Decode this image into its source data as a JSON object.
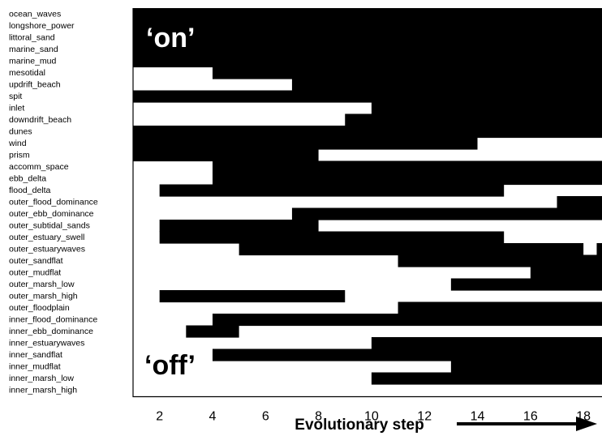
{
  "chart_data": {
    "type": "heatmap",
    "title": "",
    "xlabel": "Evolutionary step",
    "ylabel": "",
    "xlim": [
      1,
      18.7
    ],
    "x_ticks": [
      2,
      4,
      6,
      8,
      10,
      12,
      14,
      16,
      18
    ],
    "on_label": "‘on’",
    "off_label": "‘off’",
    "colors": {
      "on": "#000000",
      "off": "#ffffff"
    },
    "rows": [
      {
        "label": "ocean_waves",
        "on": [
          [
            1,
            18.7
          ]
        ]
      },
      {
        "label": "longshore_power",
        "on": [
          [
            1,
            18.7
          ]
        ]
      },
      {
        "label": "littoral_sand",
        "on": [
          [
            1,
            18.7
          ]
        ]
      },
      {
        "label": "marine_sand",
        "on": [
          [
            1,
            18.7
          ]
        ]
      },
      {
        "label": "marine_mud",
        "on": [
          [
            1,
            18.7
          ]
        ]
      },
      {
        "label": "mesotidal",
        "on": [
          [
            4,
            18.7
          ]
        ]
      },
      {
        "label": "updrift_beach",
        "on": [
          [
            7,
            18.7
          ]
        ]
      },
      {
        "label": "spit",
        "on": [
          [
            1,
            18.7
          ]
        ]
      },
      {
        "label": "inlet",
        "on": [
          [
            10,
            18.7
          ]
        ]
      },
      {
        "label": "downdrift_beach",
        "on": [
          [
            9,
            18.7
          ]
        ]
      },
      {
        "label": "dunes",
        "on": [
          [
            1,
            18.7
          ]
        ]
      },
      {
        "label": "wind",
        "on": [
          [
            1,
            14
          ]
        ]
      },
      {
        "label": "prism",
        "on": [
          [
            1,
            8
          ]
        ]
      },
      {
        "label": "accomm_space",
        "on": [
          [
            4,
            18.7
          ]
        ]
      },
      {
        "label": "ebb_delta",
        "on": [
          [
            4,
            18.7
          ]
        ]
      },
      {
        "label": "flood_delta",
        "on": [
          [
            2,
            15
          ]
        ]
      },
      {
        "label": "outer_flood_dominance",
        "on": [
          [
            17,
            18.7
          ]
        ]
      },
      {
        "label": "outer_ebb_dominance",
        "on": [
          [
            7,
            18.7
          ]
        ]
      },
      {
        "label": "outer_subtidal_sands",
        "on": [
          [
            2,
            8
          ]
        ]
      },
      {
        "label": "outer_estuary_swell",
        "on": [
          [
            2,
            15
          ]
        ]
      },
      {
        "label": "outer_estuarywaves",
        "on": [
          [
            5,
            18
          ],
          [
            18.5,
            18.7
          ]
        ]
      },
      {
        "label": "outer_sandflat",
        "on": [
          [
            11,
            18.7
          ]
        ]
      },
      {
        "label": "outer_mudflat",
        "on": [
          [
            16,
            18.7
          ]
        ]
      },
      {
        "label": "outer_marsh_low",
        "on": [
          [
            13,
            18.7
          ]
        ]
      },
      {
        "label": "outer_marsh_high",
        "on": [
          [
            2,
            9
          ]
        ]
      },
      {
        "label": "outer_floodplain",
        "on": [
          [
            11,
            18.7
          ]
        ]
      },
      {
        "label": "inner_flood_dominance",
        "on": [
          [
            4,
            18.7
          ]
        ]
      },
      {
        "label": "inner_ebb_dominance",
        "on": [
          [
            3,
            5
          ]
        ]
      },
      {
        "label": "inner_estuarywaves",
        "on": [
          [
            10,
            18.7
          ]
        ]
      },
      {
        "label": "inner_sandflat",
        "on": [
          [
            4,
            18.7
          ]
        ]
      },
      {
        "label": "inner_mudflat",
        "on": [
          [
            13,
            18.7
          ]
        ]
      },
      {
        "label": "inner_marsh_low",
        "on": [
          [
            10,
            18.7
          ]
        ]
      },
      {
        "label": "inner_marsh_high",
        "on": []
      }
    ]
  }
}
